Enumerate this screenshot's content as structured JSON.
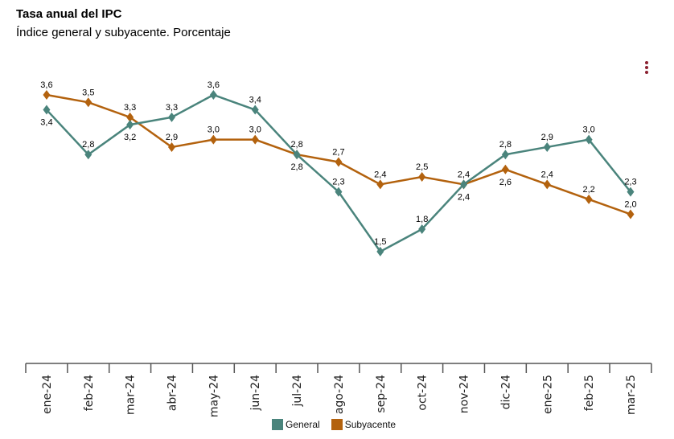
{
  "chart_data": {
    "type": "line",
    "title": "Tasa anual del IPC",
    "subtitle": "Índice general y subyacente. Porcentaje",
    "categories": [
      "ene-24",
      "feb-24",
      "mar-24",
      "abr-24",
      "may-24",
      "jun-24",
      "jul-24",
      "ago-24",
      "sep-24",
      "oct-24",
      "nov-24",
      "dic-24",
      "ene-25",
      "feb-25",
      "mar-25"
    ],
    "series": [
      {
        "name": "General",
        "color": "#4a847c",
        "values": [
          3.4,
          2.8,
          3.2,
          3.3,
          3.6,
          3.4,
          2.8,
          2.3,
          1.5,
          1.8,
          2.4,
          2.8,
          2.9,
          3.0,
          2.3
        ],
        "labels": [
          "3,4",
          "2,8",
          "3,2",
          "3,3",
          "3,6",
          "3,4",
          "2,8",
          "2,3",
          "1,5",
          "1,8",
          "2,4",
          "2,8",
          "2,9",
          "3,0",
          "2,3"
        ]
      },
      {
        "name": "Subyacente",
        "color": "#b3620e",
        "values": [
          3.6,
          3.5,
          3.3,
          2.9,
          3.0,
          3.0,
          2.8,
          2.7,
          2.4,
          2.5,
          2.4,
          2.6,
          2.4,
          2.2,
          2.0
        ],
        "labels": [
          "3,6",
          "3,5",
          "3,3",
          "2,9",
          "3,0",
          "3,0",
          "2,8",
          "2,7",
          "2,4",
          "2,5",
          "2,4",
          "2,6",
          "2,4",
          "2,2",
          "2,0"
        ]
      }
    ],
    "ylim": [
      0,
      3.6
    ],
    "grid": false,
    "legend": "bottom",
    "marker": "diamond"
  },
  "menu_icon": "kebab-menu-icon"
}
